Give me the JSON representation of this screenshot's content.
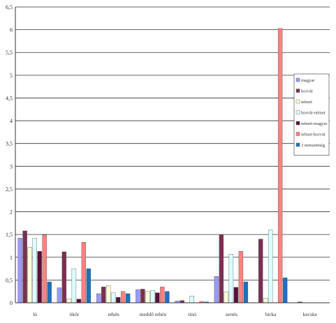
{
  "chart_data": {
    "type": "bar",
    "title": "",
    "xlabel": "",
    "ylabel": "",
    "ylim": [
      0,
      6.5
    ],
    "yticks": [
      "0",
      "0,5",
      "1",
      "1,5",
      "2",
      "2,5",
      "3",
      "3,5",
      "4",
      "4,5",
      "5",
      "5,5",
      "6",
      "6,5"
    ],
    "grid": true,
    "legend_position": "right",
    "categories": [
      "ló",
      "ökör",
      "tehén",
      "meddő tehén",
      "tinó",
      "sertés",
      "birka",
      "kecske"
    ],
    "series": [
      {
        "name": "magyar",
        "color": "#9999ff",
        "values": [
          1.42,
          0.33,
          0.2,
          0.29,
          0.04,
          0.58,
          0.0,
          0.0
        ]
      },
      {
        "name": "horvát",
        "color": "#7a3050",
        "values": [
          1.58,
          1.12,
          0.35,
          0.3,
          0.05,
          1.5,
          1.4,
          0.02
        ]
      },
      {
        "name": "német",
        "color": "#ffffd8",
        "values": [
          1.22,
          0.09,
          0.38,
          0.25,
          0.0,
          0.24,
          0.1,
          0.0
        ]
      },
      {
        "name": "horvát-német",
        "color": "#ddffff",
        "values": [
          1.42,
          0.75,
          0.22,
          0.27,
          0.15,
          1.07,
          1.6,
          0.0
        ]
      },
      {
        "name": "német-magyar",
        "color": "#5a0f3a",
        "values": [
          1.13,
          0.08,
          0.12,
          0.22,
          0.0,
          0.34,
          0.0,
          0.0
        ]
      },
      {
        "name": "német-horvát",
        "color": "#ff8080",
        "values": [
          1.49,
          1.33,
          0.25,
          0.35,
          0.03,
          1.13,
          6.03,
          0.0
        ]
      },
      {
        "name": "3 nemzetiség",
        "color": "#1f6fbf",
        "values": [
          0.46,
          0.75,
          0.2,
          0.25,
          0.02,
          0.46,
          0.55,
          0.0
        ]
      }
    ]
  }
}
